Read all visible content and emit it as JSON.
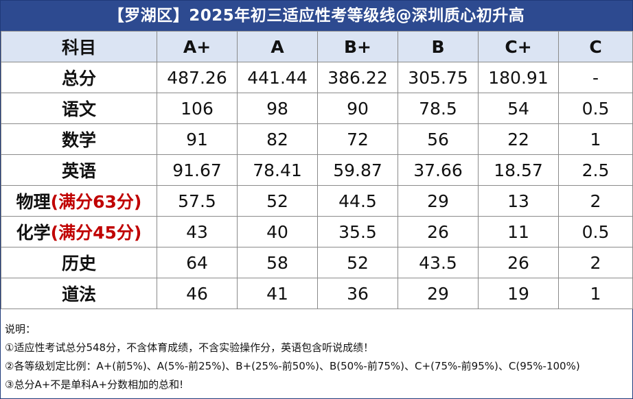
{
  "title": "【罗湖区】2025年初三适应性考等级线@深圳质心初升高",
  "header": [
    "科目",
    "A+",
    "A",
    "B+",
    "B",
    "C+",
    "C"
  ],
  "rows": [
    {
      "subject": "总分",
      "note": "",
      "values": [
        "487.26",
        "441.44",
        "386.22",
        "305.75",
        "180.91",
        "-"
      ]
    },
    {
      "subject": "语文",
      "note": "",
      "values": [
        "106",
        "98",
        "90",
        "78.5",
        "54",
        "0.5"
      ]
    },
    {
      "subject": "数学",
      "note": "",
      "values": [
        "91",
        "82",
        "72",
        "56",
        "22",
        "1"
      ]
    },
    {
      "subject": "英语",
      "note": "",
      "values": [
        "91.67",
        "78.41",
        "59.87",
        "37.66",
        "18.57",
        "2.5"
      ]
    },
    {
      "subject": "物理",
      "note": "(满分63分)",
      "values": [
        "57.5",
        "52",
        "44.5",
        "29",
        "13",
        "2"
      ]
    },
    {
      "subject": "化学",
      "note": "(满分45分)",
      "values": [
        "43",
        "40",
        "35.5",
        "26",
        "11",
        "0.5"
      ]
    },
    {
      "subject": "历史",
      "note": "",
      "values": [
        "64",
        "58",
        "52",
        "43.5",
        "26",
        "2"
      ]
    },
    {
      "subject": "道法",
      "note": "",
      "values": [
        "46",
        "41",
        "36",
        "29",
        "19",
        "1"
      ]
    }
  ],
  "notes": {
    "heading": "说明：",
    "items": [
      "①适应性考试总分548分，不含体育成绩，不含实验操作分，英语包含听说成绩！",
      "②各等级划定比例：A+(前5%)、A(5%-前25%)、B+(25%-前50%)、B(50%-前75%)、C+(75%-前95%)、C(95%-100%)",
      "③总分A+不是单科A+分数相加的总和!"
    ]
  },
  "colors": {
    "title_bg": "#2d4a90",
    "header_bg": "#dbe4f3",
    "highlight": "#c00000"
  }
}
